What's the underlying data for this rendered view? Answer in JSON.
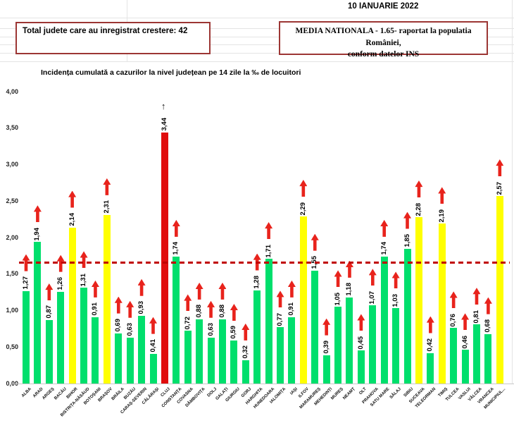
{
  "header": {
    "date": "10 IANUARIE 2022",
    "total_box": "Total judete care au inregistrat crestere: 42",
    "media_line1": "MEDIA NATIONALA - 1.65-  raportat la populatia României,",
    "media_line2": "conform datelor INS"
  },
  "chart_data": {
    "type": "bar",
    "title": "Incidența cumulată a cazurilor la nivel județean pe 14 zile la ‰ de locuitori",
    "ylim": [
      0,
      4
    ],
    "ytick_step": 0.5,
    "ytick_labels": [
      "0,00",
      "0,50",
      "1,00",
      "1,50",
      "2,00",
      "2,50",
      "3,00",
      "3,50",
      "4,00"
    ],
    "grid": false,
    "legend": "none",
    "reference_line": {
      "value": 1.65,
      "style": "dashed",
      "color": "#c00000"
    },
    "colors": {
      "green": "#00df6c",
      "yellow": "#ffff00",
      "red": "#e00d0d",
      "arrow": "#e8231c"
    },
    "bars": [
      {
        "county": "ALBA",
        "value": 1.27,
        "label": "1,27",
        "color": "green",
        "arrow": "red-block-up"
      },
      {
        "county": "ARAD",
        "value": 1.94,
        "label": "1,94",
        "color": "green",
        "arrow": "red-block-up"
      },
      {
        "county": "ARGEȘ",
        "value": 0.87,
        "label": "0,87",
        "color": "green",
        "arrow": "red-block-up"
      },
      {
        "county": "BACĂU",
        "value": 1.26,
        "label": "1,26",
        "color": "green",
        "arrow": "red-block-up"
      },
      {
        "county": "BIHOR",
        "value": 2.14,
        "label": "2,14",
        "color": "yellow",
        "arrow": "red-block-up"
      },
      {
        "county": "BISTRIȚA-NĂSĂUD",
        "value": 1.31,
        "label": "1,31",
        "color": "green",
        "arrow": "red-block-up"
      },
      {
        "county": "BOTOȘANI",
        "value": 0.91,
        "label": "0,91",
        "color": "green",
        "arrow": "red-block-up"
      },
      {
        "county": "BRAȘOV",
        "value": 2.31,
        "label": "2,31",
        "color": "yellow",
        "arrow": "red-block-up"
      },
      {
        "county": "BRĂILA",
        "value": 0.69,
        "label": "0,69",
        "color": "green",
        "arrow": "red-block-up"
      },
      {
        "county": "BUZĂU",
        "value": 0.63,
        "label": "0,63",
        "color": "green",
        "arrow": "red-block-up"
      },
      {
        "county": "CARAȘ-SEVERIN",
        "value": 0.93,
        "label": "0,93",
        "color": "green",
        "arrow": "red-block-up"
      },
      {
        "county": "CĂLĂRAȘI",
        "value": 0.41,
        "label": "0,41",
        "color": "green",
        "arrow": "red-block-up"
      },
      {
        "county": "CLUJ",
        "value": 3.44,
        "label": "3,44",
        "color": "red",
        "arrow": "black-thin-up"
      },
      {
        "county": "CONSTANȚA",
        "value": 1.74,
        "label": "1,74",
        "color": "green",
        "arrow": "red-block-up"
      },
      {
        "county": "COVASNA",
        "value": 0.72,
        "label": "0,72",
        "color": "green",
        "arrow": "red-block-up"
      },
      {
        "county": "DÂMBOVIȚA",
        "value": 0.88,
        "label": "0,88",
        "color": "green",
        "arrow": "red-block-up"
      },
      {
        "county": "DOLJ",
        "value": 0.63,
        "label": "0,63",
        "color": "green",
        "arrow": "red-block-up"
      },
      {
        "county": "GALAȚI",
        "value": 0.88,
        "label": "0,88",
        "color": "green",
        "arrow": "red-block-up"
      },
      {
        "county": "GIURGIU",
        "value": 0.59,
        "label": "0,59",
        "color": "green",
        "arrow": "red-block-up"
      },
      {
        "county": "GORJ",
        "value": 0.32,
        "label": "0,32",
        "color": "green",
        "arrow": "red-block-up"
      },
      {
        "county": "HARGHITA",
        "value": 1.28,
        "label": "1,28",
        "color": "green",
        "arrow": "red-block-up"
      },
      {
        "county": "HUNEDOARA",
        "value": 1.71,
        "label": "1,71",
        "color": "green",
        "arrow": "red-block-up"
      },
      {
        "county": "IALOMIȚA",
        "value": 0.77,
        "label": "0,77",
        "color": "green",
        "arrow": "red-block-up"
      },
      {
        "county": "IAȘI",
        "value": 0.91,
        "label": "0,91",
        "color": "green",
        "arrow": "red-block-up"
      },
      {
        "county": "ILFOV",
        "value": 2.29,
        "label": "2,29",
        "color": "yellow",
        "arrow": "red-block-up"
      },
      {
        "county": "MARAMUREȘ",
        "value": 1.55,
        "label": "1,55",
        "color": "green",
        "arrow": "red-block-up"
      },
      {
        "county": "MEHEDINȚI",
        "value": 0.39,
        "label": "0,39",
        "color": "green",
        "arrow": "red-block-up"
      },
      {
        "county": "MUREȘ",
        "value": 1.05,
        "label": "1,05",
        "color": "green",
        "arrow": "red-block-up"
      },
      {
        "county": "NEAMȚ",
        "value": 1.18,
        "label": "1,18",
        "color": "green",
        "arrow": "red-block-up"
      },
      {
        "county": "OLT",
        "value": 0.45,
        "label": "0,45",
        "color": "green",
        "arrow": "red-block-up"
      },
      {
        "county": "PRAHOVA",
        "value": 1.07,
        "label": "1,07",
        "color": "green",
        "arrow": "red-block-up"
      },
      {
        "county": "SATU MARE",
        "value": 1.74,
        "label": "1,74",
        "color": "green",
        "arrow": "red-block-up"
      },
      {
        "county": "SĂLAJ",
        "value": 1.03,
        "label": "1,03",
        "color": "green",
        "arrow": "red-block-up"
      },
      {
        "county": "SIBIU",
        "value": 1.85,
        "label": "1,85",
        "color": "green",
        "arrow": "red-block-up"
      },
      {
        "county": "SUCEAVA",
        "value": 2.28,
        "label": "2,28",
        "color": "yellow",
        "arrow": "red-block-up"
      },
      {
        "county": "TELEORMAN",
        "value": 0.42,
        "label": "0,42",
        "color": "green",
        "arrow": "red-block-up"
      },
      {
        "county": "TIMIȘ",
        "value": 2.19,
        "label": "2,19",
        "color": "yellow",
        "arrow": "red-block-up"
      },
      {
        "county": "TULCEA",
        "value": 0.76,
        "label": "0,76",
        "color": "green",
        "arrow": "red-block-up"
      },
      {
        "county": "VASLUI",
        "value": 0.46,
        "label": "0,46",
        "color": "green",
        "arrow": "red-block-up"
      },
      {
        "county": "VÂLCEA",
        "value": 0.81,
        "label": "0,81",
        "color": "green",
        "arrow": "red-block-up"
      },
      {
        "county": "VRANCEA",
        "value": 0.68,
        "label": "0,68",
        "color": "green",
        "arrow": "red-block-up"
      },
      {
        "county": "MUNICIPIUL...",
        "value": 2.57,
        "label": "2,57",
        "color": "yellow",
        "arrow": "red-block-up"
      }
    ]
  }
}
